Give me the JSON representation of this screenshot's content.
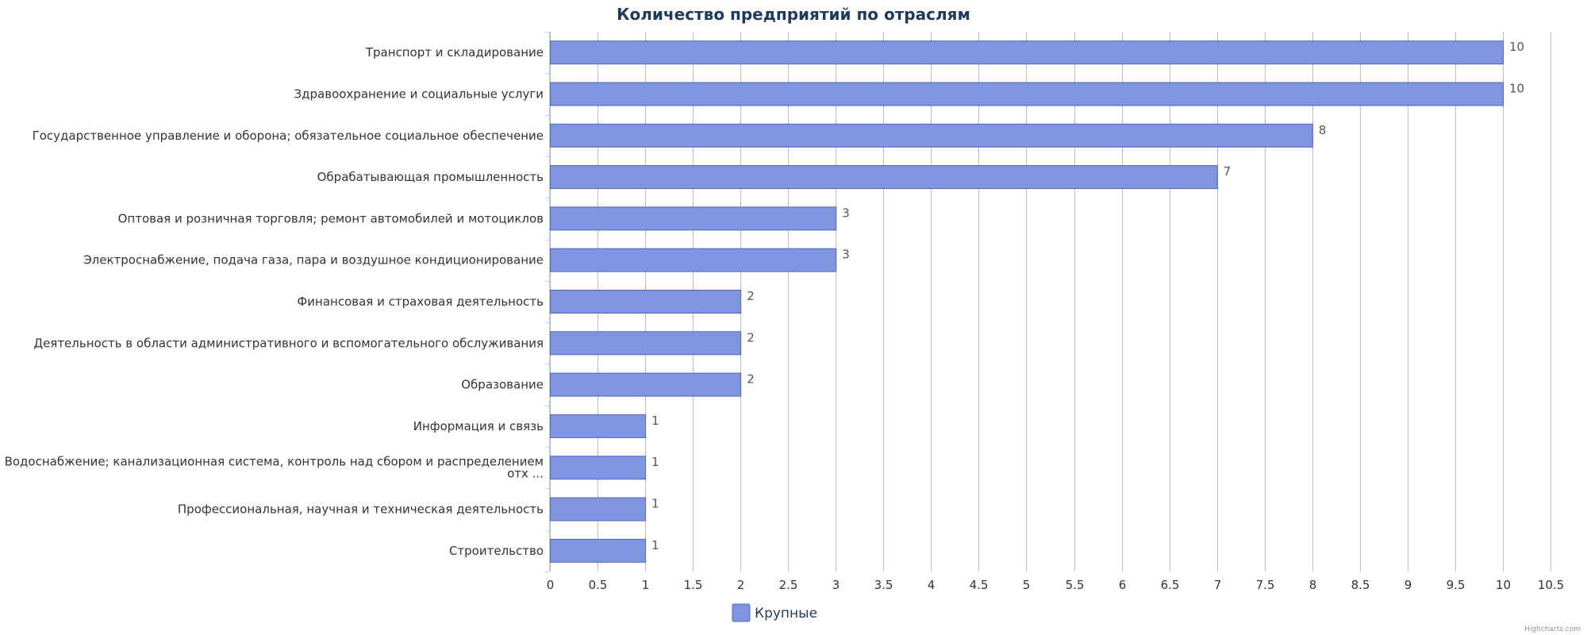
{
  "chart_data": {
    "type": "bar",
    "orientation": "horizontal",
    "title": "Количество предприятий по отраслям",
    "categories": [
      "Транспорт и складирование",
      "Здравоохранение и социальные услуги",
      "Государственное управление и оборона; обязательное социальное обеспечение",
      "Обрабатывающая промышленность",
      "Оптовая и розничная торговля; ремонт автомобилей и мотоциклов",
      "Электроснабжение, подача газа, пара и воздушное кондиционирование",
      "Финансовая и страховая деятельность",
      "Деятельность в области административного и вспомогательного обслуживания",
      "Образование",
      "Информация и связь",
      [
        "Водоснабжение; канализационная система, контроль над сбором и распределением",
        "отх ..."
      ],
      "Профессиональная, научная и техническая деятельность",
      "Строительство"
    ],
    "series": [
      {
        "name": "Крупные",
        "values": [
          10,
          10,
          8,
          7,
          3,
          3,
          2,
          2,
          2,
          1,
          1,
          1,
          1
        ],
        "color": "#7f95e0",
        "border_color": "#5066c0"
      }
    ],
    "xlim": [
      0,
      10.5
    ],
    "tick_step": 0.5,
    "ticks": [
      "0",
      "0.5",
      "1",
      "1.5",
      "2",
      "2.5",
      "3",
      "3.5",
      "4",
      "4.5",
      "5",
      "5.5",
      "6",
      "6.5",
      "7",
      "7.5",
      "8",
      "8.5",
      "9",
      "9.5",
      "10",
      "10.5"
    ],
    "grid": true,
    "grid_color": "#b8b8b8",
    "axis_color": "#c0d0e0",
    "legend_position": "bottom-center",
    "credits": "Highcharts.com"
  }
}
